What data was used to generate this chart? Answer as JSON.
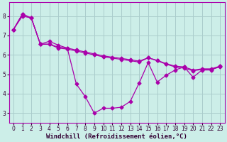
{
  "background_color": "#cceee8",
  "grid_color": "#aacccc",
  "line_color": "#aa00aa",
  "xlabel": "Windchill (Refroidissement éolien,°C)",
  "xlim": [
    -0.5,
    23.5
  ],
  "ylim": [
    2.5,
    8.7
  ],
  "xticks": [
    0,
    1,
    2,
    3,
    4,
    5,
    6,
    7,
    8,
    9,
    10,
    11,
    12,
    13,
    14,
    15,
    16,
    17,
    18,
    19,
    20,
    21,
    22,
    23
  ],
  "yticks": [
    3,
    4,
    5,
    6,
    7,
    8
  ],
  "series1_x": [
    0,
    1,
    2,
    3,
    4,
    5,
    6,
    7,
    8,
    9,
    10,
    11,
    12,
    13,
    14,
    15,
    16,
    17,
    18,
    19,
    20,
    21,
    22,
    23
  ],
  "series1_y": [
    7.3,
    8.1,
    7.9,
    6.55,
    6.55,
    6.4,
    6.35,
    6.25,
    6.15,
    6.05,
    5.95,
    5.88,
    5.82,
    5.75,
    5.68,
    5.85,
    5.72,
    5.55,
    5.42,
    5.38,
    5.22,
    5.28,
    5.28,
    5.42
  ],
  "series2_x": [
    0,
    1,
    2,
    3,
    4,
    5,
    6,
    7,
    8,
    9,
    10,
    11,
    12,
    13,
    14,
    15,
    16,
    17,
    18,
    19,
    20,
    21,
    22,
    23
  ],
  "series2_y": [
    7.3,
    8.0,
    7.9,
    6.55,
    6.55,
    6.35,
    6.3,
    6.2,
    6.1,
    6.0,
    5.9,
    5.83,
    5.77,
    5.7,
    5.63,
    5.85,
    5.7,
    5.52,
    5.38,
    5.32,
    5.18,
    5.25,
    5.25,
    5.38
  ],
  "series3_x": [
    0,
    1,
    2,
    3,
    4,
    5,
    6,
    7,
    8,
    9,
    10,
    11,
    12,
    13,
    14,
    15,
    16,
    17,
    18,
    19,
    20,
    21,
    22,
    23
  ],
  "series3_y": [
    7.3,
    8.1,
    7.9,
    6.55,
    6.7,
    6.5,
    6.35,
    4.5,
    3.85,
    3.0,
    3.25,
    3.25,
    3.3,
    3.6,
    4.55,
    5.6,
    4.6,
    4.95,
    5.22,
    5.38,
    4.85,
    5.22,
    5.22,
    5.42
  ],
  "tick_fontsize": 5.5,
  "xlabel_fontsize": 6.5,
  "marker_size": 2.5
}
